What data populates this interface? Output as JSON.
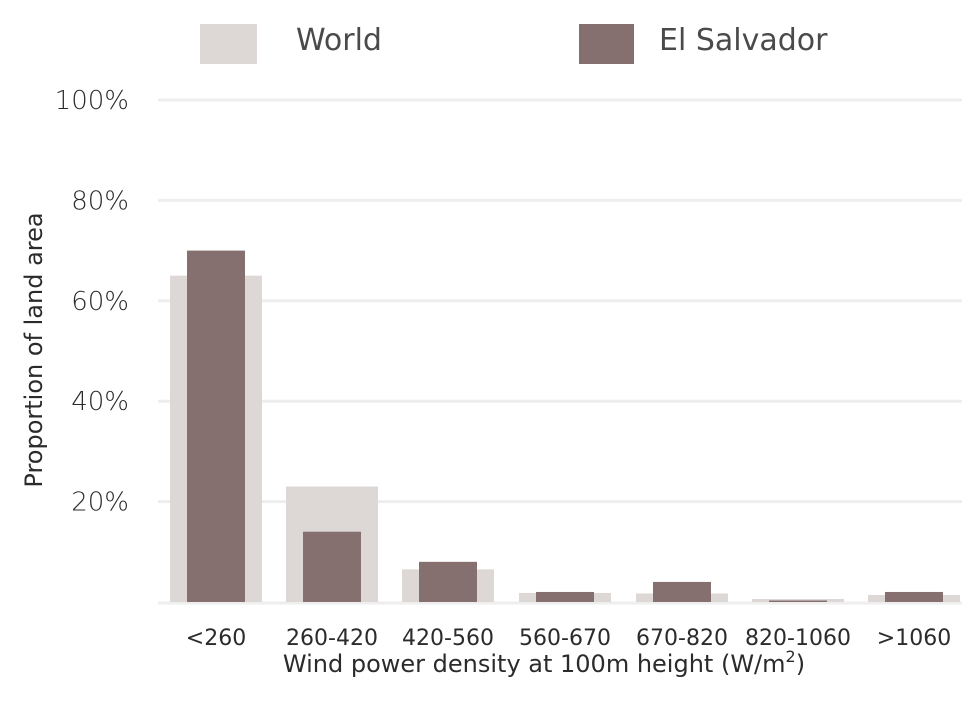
{
  "chart_data": {
    "type": "bar",
    "categories": [
      "<260",
      "260-420",
      "420-560",
      "560-670",
      "670-820",
      "820-1060",
      ">1060"
    ],
    "series": [
      {
        "name": "World",
        "values": [
          65,
          23,
          6.5,
          1.8,
          1.7,
          0.6,
          1.4
        ],
        "color": "#ddd7d6"
      },
      {
        "name": "El Salvador",
        "values": [
          70,
          14,
          8,
          2,
          4,
          0.3,
          2
        ],
        "color": "#85706f"
      }
    ],
    "y_ticks": [
      {
        "value": 100,
        "label": "100%"
      },
      {
        "value": 80,
        "label": "80%"
      },
      {
        "value": 60,
        "label": "60%"
      },
      {
        "value": 40,
        "label": "40%"
      },
      {
        "value": 20,
        "label": "20%"
      }
    ],
    "ylim": [
      0,
      100
    ],
    "xlabel": "Wind power density at 100m height (W/m",
    "xlabel_sup": "2",
    "xlabel_end": ")",
    "ylabel": "Proportion of land area",
    "grid": true,
    "legend_position": "top",
    "gridline_color": "#eeeeee"
  }
}
